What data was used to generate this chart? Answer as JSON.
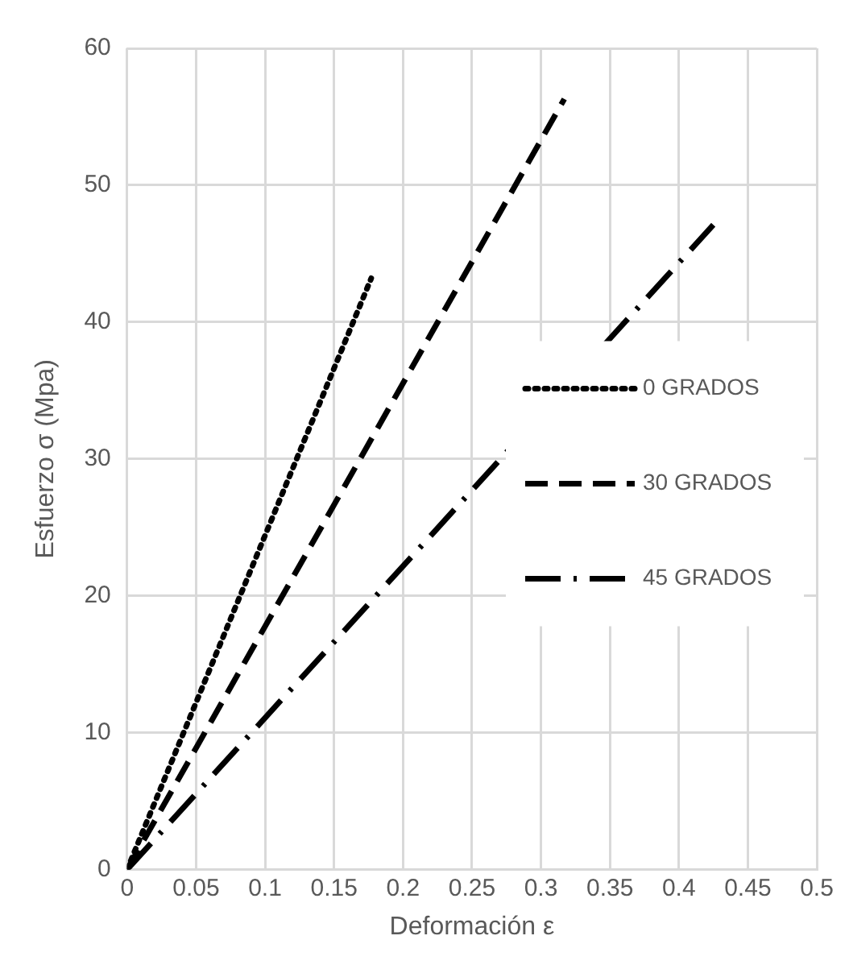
{
  "chart_data": {
    "type": "line",
    "xlabel": "Deformación ε",
    "ylabel": "Esfuerzo σ (Mpa)",
    "xlim": [
      0,
      0.5
    ],
    "xticks": [
      0,
      0.05,
      0.1,
      0.15,
      0.2,
      0.25,
      0.3,
      0.35,
      0.4,
      0.45,
      0.5
    ],
    "ylim": [
      0,
      60
    ],
    "yticks": [
      0,
      10,
      20,
      30,
      40,
      50,
      60
    ],
    "grid": true,
    "legend": "right",
    "marker": "none",
    "series": [
      {
        "name": "0 GRADOS",
        "color": "#000000",
        "line_style": "dotted",
        "x": [
          0,
          0.177
        ],
        "values": [
          0,
          43.2
        ]
      },
      {
        "name": "30 GRADOS",
        "color": "#000000",
        "line_style": "dashed",
        "x": [
          0,
          0.317
        ],
        "values": [
          0,
          56.3
        ]
      },
      {
        "name": "45 GRADOS",
        "color": "#000000",
        "line_style": "dashdot",
        "x": [
          0,
          0.425
        ],
        "values": [
          0,
          47.1
        ]
      }
    ]
  }
}
